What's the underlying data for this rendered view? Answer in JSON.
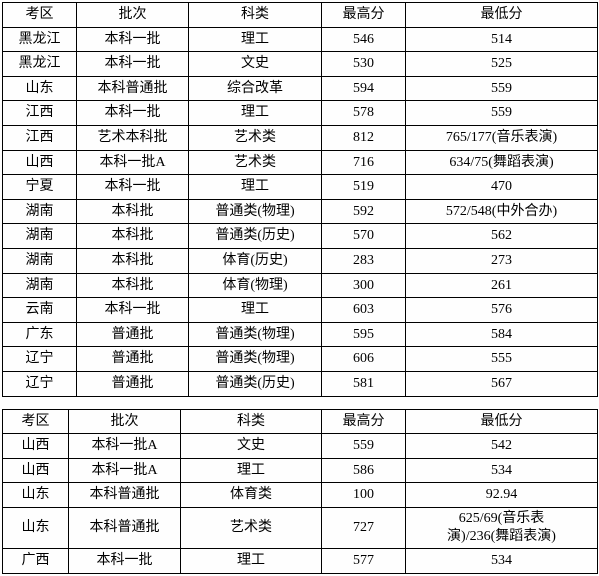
{
  "table1": {
    "headers": [
      "考区",
      "批次",
      "科类",
      "最高分",
      "最低分"
    ],
    "rows": [
      [
        "黑龙江",
        "本科一批",
        "理工",
        "546",
        "514"
      ],
      [
        "黑龙江",
        "本科一批",
        "文史",
        "530",
        "525"
      ],
      [
        "山东",
        "本科普通批",
        "综合改革",
        "594",
        "559"
      ],
      [
        "江西",
        "本科一批",
        "理工",
        "578",
        "559"
      ],
      [
        "江西",
        "艺术本科批",
        "艺术类",
        "812",
        "765/177(音乐表演)"
      ],
      [
        "山西",
        "本科一批A",
        "艺术类",
        "716",
        "634/75(舞蹈表演)"
      ],
      [
        "宁夏",
        "本科一批",
        "理工",
        "519",
        "470"
      ],
      [
        "湖南",
        "本科批",
        "普通类(物理)",
        "592",
        "572/548(中外合办)"
      ],
      [
        "湖南",
        "本科批",
        "普通类(历史)",
        "570",
        "562"
      ],
      [
        "湖南",
        "本科批",
        "体育(历史)",
        "283",
        "273"
      ],
      [
        "湖南",
        "本科批",
        "体育(物理)",
        "300",
        "261"
      ],
      [
        "云南",
        "本科一批",
        "理工",
        "603",
        "576"
      ],
      [
        "广东",
        "普通批",
        "普通类(物理)",
        "595",
        "584"
      ],
      [
        "辽宁",
        "普通批",
        "普通类(物理)",
        "606",
        "555"
      ],
      [
        "辽宁",
        "普通批",
        "普通类(历史)",
        "581",
        "567"
      ]
    ]
  },
  "table2": {
    "headers": [
      "考区",
      "批次",
      "科类",
      "最高分",
      "最低分"
    ],
    "rows": [
      [
        "山西",
        "本科一批A",
        "文史",
        "559",
        "542"
      ],
      [
        "山西",
        "本科一批A",
        "理工",
        "586",
        "534"
      ],
      [
        "山东",
        "本科普通批",
        "体育类",
        "100",
        "92.94"
      ],
      [
        "山东",
        "本科普通批",
        "艺术类",
        "727",
        "625/69(音乐表\n演)/236(舞蹈表演)"
      ],
      [
        "广西",
        "本科一批",
        "理工",
        "577",
        "534"
      ]
    ]
  },
  "style": {
    "border_color": "#000000",
    "background_color": "#fefefe",
    "font_family": "SimSun",
    "font_size": 14,
    "text_align": "center"
  }
}
